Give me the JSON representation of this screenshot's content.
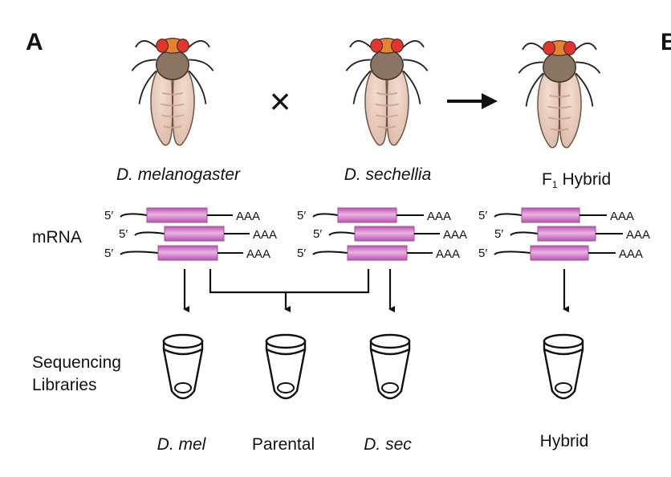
{
  "panel_label": "A",
  "panel_label_next": "B",
  "cross_symbol": "×",
  "species": {
    "mel": "D. melanogaster",
    "sec": "D. sechellia"
  },
  "hybrid": {
    "prefix": "F",
    "sub": "1",
    "label": "Hybrid"
  },
  "mrna_label": "mRNA",
  "five_prime": "5′",
  "poly_a": "AAA",
  "sequencing_label": [
    "Sequencing",
    "Libraries"
  ],
  "libraries": {
    "mel": "D. mel",
    "parental": "Parental",
    "sec": "D. sec",
    "hybrid": "Hybrid"
  },
  "colors": {
    "exon": "#d274c8",
    "exon_dark": "#a64ca0",
    "fly_body": "#e9cdbd",
    "fly_thorax": "#8a7563",
    "fly_eye": "#e2352b",
    "fly_head": "#e5832f"
  }
}
